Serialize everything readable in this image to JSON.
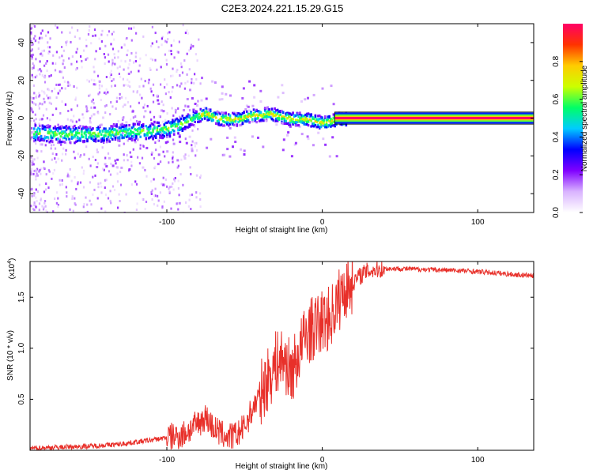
{
  "title": "C2E3.2024.221.15.29.G15",
  "chart_data": [
    {
      "type": "heatmap",
      "name": "spectrogram",
      "xlabel": "Height of straight line (km)",
      "ylabel": "Frequency (Hz)",
      "xlim": [
        -188,
        136
      ],
      "ylim": [
        -50,
        50
      ],
      "xticks": [
        -100,
        0,
        100
      ],
      "xtick_labels": [
        "-100",
        "0",
        "100"
      ],
      "yticks": [
        -40,
        -20,
        0,
        20,
        40
      ],
      "ytick_labels": [
        "-40",
        "-20",
        "0",
        "20",
        "40"
      ],
      "ridge": {
        "x": [
          -188,
          -170,
          -150,
          -130,
          -110,
          -100,
          -92,
          -85,
          -80,
          -75,
          -70,
          -65,
          -60,
          -55,
          -50,
          -45,
          -40,
          -35,
          -30,
          -25,
          -20,
          -15,
          -10,
          -5,
          0,
          5,
          10,
          15,
          136
        ],
        "freq": [
          -7,
          -8,
          -8,
          -7,
          -6,
          -5,
          -3,
          0,
          2,
          3,
          1,
          0,
          0,
          0,
          1,
          2,
          2,
          3,
          2,
          1,
          0,
          0,
          0,
          -1,
          -2,
          -1,
          0,
          0,
          0
        ]
      },
      "colorbar": {
        "label": "Normalized spectral amplitude",
        "range": [
          0,
          1
        ],
        "ticks": [
          0.0,
          0.2,
          0.4,
          0.6,
          0.8
        ],
        "tick_labels": [
          "0.0",
          "0.2",
          "0.4",
          "0.6",
          "0.8"
        ],
        "colors": [
          "#ffffff",
          "#d9b3ff",
          "#8000ff",
          "#0000ff",
          "#00ccff",
          "#00ff66",
          "#ccff00",
          "#ffcc00",
          "#ff3300",
          "#ff0066"
        ]
      }
    },
    {
      "type": "line",
      "name": "snr",
      "xlabel": "Height of straight line (km)",
      "ylabel": "SNR (10 * v/v)",
      "multiplier": "(x10",
      "multiplier_exp": "4",
      "multiplier_close": ")",
      "xlim": [
        -188,
        136
      ],
      "ylim": [
        0,
        18500
      ],
      "xticks": [
        -100,
        0,
        100
      ],
      "xtick_labels": [
        "-100",
        "0",
        "100"
      ],
      "yticks": [
        5000,
        10000,
        15000
      ],
      "ytick_labels": [
        "0.5",
        "1.0",
        "1.5"
      ],
      "color": "#e8302a",
      "x": [
        -188,
        -170,
        -150,
        -130,
        -110,
        -90,
        -80,
        -75,
        -70,
        -65,
        -60,
        -55,
        -50,
        -45,
        -40,
        -35,
        -30,
        -25,
        -20,
        -15,
        -10,
        -5,
        0,
        5,
        10,
        15,
        20,
        25,
        30,
        35,
        40,
        50,
        70,
        90,
        110,
        125,
        136
      ],
      "values": [
        200,
        300,
        400,
        600,
        1000,
        1500,
        2600,
        3300,
        2200,
        1600,
        1300,
        1500,
        2300,
        4000,
        5500,
        7000,
        8500,
        9000,
        7500,
        9500,
        11500,
        12000,
        12600,
        13000,
        14500,
        16000,
        16500,
        17200,
        17600,
        17700,
        17800,
        17800,
        17700,
        17600,
        17400,
        17200,
        17100
      ]
    }
  ]
}
